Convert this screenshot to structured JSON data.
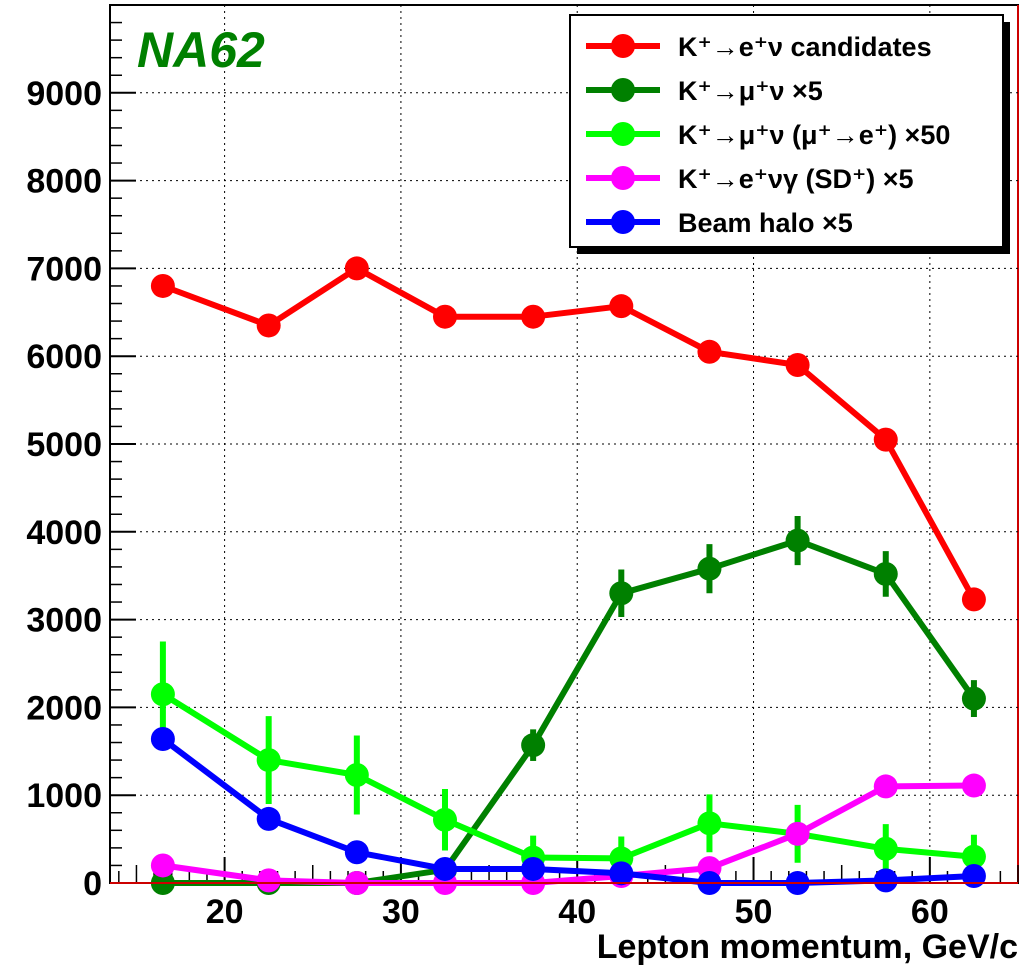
{
  "chart_data": {
    "type": "line",
    "experiment_label": "NA62",
    "xlabel": "Lepton momentum, GeV/c",
    "ylabel": "",
    "xlim": [
      13.5,
      65
    ],
    "ylim": [
      0,
      10000
    ],
    "x_ticks": [
      20,
      30,
      40,
      50,
      60
    ],
    "y_ticks": [
      0,
      1000,
      2000,
      3000,
      4000,
      5000,
      6000,
      7000,
      8000,
      9000
    ],
    "grid": true,
    "legend_position": "top-right",
    "x": [
      16.5,
      22.5,
      27.5,
      32.5,
      37.5,
      42.5,
      47.5,
      52.5,
      57.5,
      62.5
    ],
    "series": [
      {
        "name": "K⁺→e⁺ν candidates",
        "color": "#ff0000",
        "values": [
          6800,
          6350,
          7000,
          6450,
          6450,
          6570,
          6050,
          5900,
          5050,
          3230
        ],
        "errors": [
          80,
          80,
          80,
          80,
          80,
          80,
          80,
          80,
          70,
          60
        ]
      },
      {
        "name": "K⁺→μ⁺ν ×5",
        "color": "#008000",
        "values": [
          0,
          0,
          0,
          150,
          1570,
          3300,
          3580,
          3900,
          3520,
          2100
        ],
        "errors": [
          0,
          0,
          0,
          100,
          180,
          270,
          280,
          280,
          260,
          210
        ]
      },
      {
        "name": "K⁺→μ⁺ν (μ⁺→e⁺) ×50",
        "color": "#00ff00",
        "values": [
          2150,
          1400,
          1230,
          720,
          290,
          280,
          680,
          560,
          390,
          300
        ],
        "errors": [
          600,
          500,
          450,
          350,
          250,
          250,
          330,
          330,
          280,
          250
        ]
      },
      {
        "name": "K⁺→e⁺νγ (SD⁺) ×5",
        "color": "#ff00ff",
        "values": [
          200,
          30,
          0,
          0,
          0,
          80,
          170,
          560,
          1100,
          1110
        ],
        "errors": [
          40,
          20,
          0,
          0,
          0,
          40,
          60,
          100,
          130,
          130
        ]
      },
      {
        "name": "Beam halo ×5",
        "color": "#0000ff",
        "values": [
          1640,
          730,
          350,
          160,
          160,
          110,
          0,
          0,
          30,
          80
        ],
        "errors": [
          60,
          50,
          40,
          30,
          30,
          30,
          0,
          0,
          20,
          20
        ]
      }
    ]
  }
}
